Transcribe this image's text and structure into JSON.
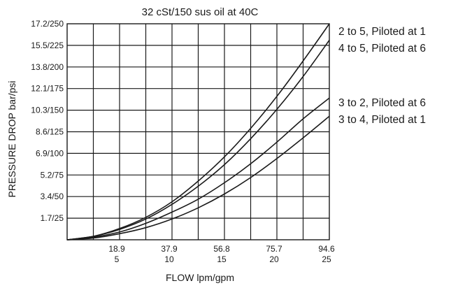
{
  "chart_data": {
    "type": "line",
    "title": "32 cSt/150 sus oil at 40C",
    "xlabel": "FLOW lpm/gpm",
    "ylabel": "PRESSURE DROP bar/psi",
    "xlim": [
      0,
      25
    ],
    "ylim": [
      0,
      250
    ],
    "grid": true,
    "legend_placement": "right, at line ends",
    "x_ticks": [
      {
        "value": 5,
        "lpm": "18.9",
        "gpm": "5"
      },
      {
        "value": 10,
        "lpm": "37.9",
        "gpm": "10"
      },
      {
        "value": 15,
        "lpm": "56.8",
        "gpm": "15"
      },
      {
        "value": 20,
        "lpm": "75.7",
        "gpm": "20"
      },
      {
        "value": 25,
        "lpm": "94.6",
        "gpm": "25"
      }
    ],
    "y_ticks": [
      {
        "value": 25,
        "label": "1.7/25"
      },
      {
        "value": 50,
        "label": "3.4/50"
      },
      {
        "value": 75,
        "label": "5.2/75"
      },
      {
        "value": 100,
        "label": "6.9/100"
      },
      {
        "value": 125,
        "label": "8.6/125"
      },
      {
        "value": 150,
        "label": "10.3/150"
      },
      {
        "value": 175,
        "label": "12.1/175"
      },
      {
        "value": 200,
        "label": "13.8/200"
      },
      {
        "value": 225,
        "label": "15.5/225"
      },
      {
        "value": 250,
        "label": "17.2/250"
      }
    ],
    "series": [
      {
        "name": "2 to 5, Piloted at 1",
        "x": [
          0,
          2.5,
          5,
          7.5,
          10,
          12.5,
          15,
          17.5,
          20,
          22.5,
          25
        ],
        "y": [
          0,
          4,
          13,
          26,
          44,
          68,
          96,
          129,
          166,
          207,
          250
        ]
      },
      {
        "name": "4 to 5, Piloted at 6",
        "x": [
          0,
          2.5,
          5,
          7.5,
          10,
          12.5,
          15,
          17.5,
          20,
          22.5,
          25
        ],
        "y": [
          0,
          4,
          12,
          24,
          41,
          62,
          87,
          117,
          151,
          189,
          231
        ]
      },
      {
        "name": "3 to 2, Piloted at 6",
        "x": [
          0,
          2.5,
          5,
          7.5,
          10,
          12.5,
          15,
          17.5,
          20,
          22.5,
          25
        ],
        "y": [
          0,
          3,
          9,
          19,
          32,
          47,
          66,
          88,
          113,
          140,
          164
        ]
      },
      {
        "name": "3 to 4, Piloted at 1",
        "x": [
          0,
          2.5,
          5,
          7.5,
          10,
          12.5,
          15,
          17.5,
          20,
          22.5,
          25
        ],
        "y": [
          0,
          2,
          7,
          14,
          24,
          37,
          53,
          72,
          94,
          118,
          143
        ]
      }
    ]
  }
}
